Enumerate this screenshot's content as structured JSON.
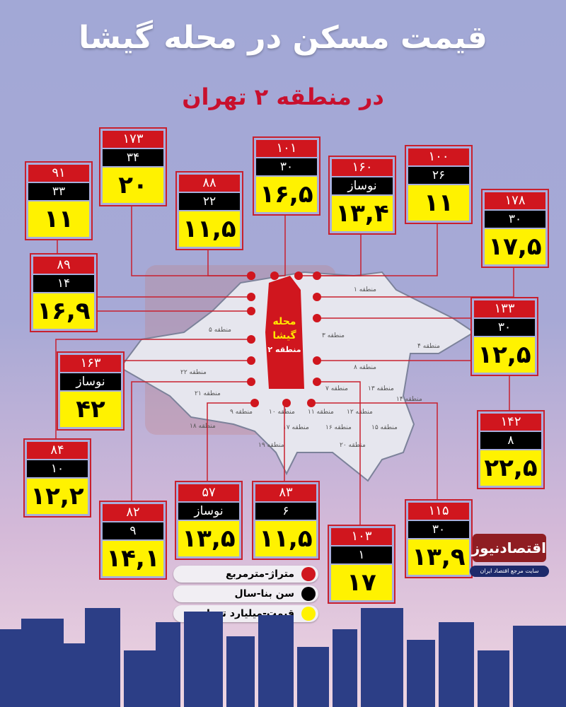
{
  "header": {
    "title": "قیمت مسکن در محله گیشا",
    "subtitle": "در منطقه ۲ تهران"
  },
  "map": {
    "center_label": "محله گیشا",
    "center_sub": "منطقه ۲",
    "districts": [
      "منطقه ۱",
      "منطقه ۳",
      "منطقه ۴",
      "منطقه ۵",
      "منطقه ۲۲",
      "منطقه ۲۱",
      "منطقه ۱۸",
      "منطقه ۹",
      "منطقه ۱۰",
      "منطقه ۱۱",
      "منطقه ۱۲",
      "منطقه ۱۳",
      "منطقه ۱۴",
      "منطقه ۱۵",
      "منطقه ۱۶",
      "منطقه ۱۷",
      "منطقه ۱۹",
      "منطقه ۲۰",
      "منطقه ۷",
      "منطقه ۸"
    ]
  },
  "listings": [
    {
      "area": "۹۱",
      "age": "۳۳",
      "price": "۱۱"
    },
    {
      "area": "۱۷۳",
      "age": "۳۴",
      "price": "۲۰"
    },
    {
      "area": "۸۸",
      "age": "۲۲",
      "price": "۱۱,۵"
    },
    {
      "area": "۱۰۱",
      "age": "۳۰",
      "price": "۱۶,۵"
    },
    {
      "area": "۱۶۰",
      "age": "نوساز",
      "price": "۱۳,۴"
    },
    {
      "area": "۱۰۰",
      "age": "۲۶",
      "price": "۱۱"
    },
    {
      "area": "۱۷۸",
      "age": "۳۰",
      "price": "۱۷,۵"
    },
    {
      "area": "۸۹",
      "age": "۱۴",
      "price": "۱۶,۹"
    },
    {
      "area": "۱۳۳",
      "age": "۳۰",
      "price": "۱۲,۵"
    },
    {
      "area": "۱۶۳",
      "age": "نوساز",
      "price": "۴۲"
    },
    {
      "area": "۱۴۲",
      "age": "۸",
      "price": "۲۲,۵"
    },
    {
      "area": "۸۴",
      "age": "۱۰",
      "price": "۱۲,۲"
    },
    {
      "area": "۸۲",
      "age": "۹",
      "price": "۱۴,۱"
    },
    {
      "area": "۵۷",
      "age": "نوساز",
      "price": "۱۳,۵"
    },
    {
      "area": "۸۳",
      "age": "۶",
      "price": "۱۱,۵"
    },
    {
      "area": "۱۰۳",
      "age": "۱",
      "price": "۱۷"
    },
    {
      "area": "۱۱۵",
      "age": "۳۰",
      "price": "۱۳,۹"
    }
  ],
  "legend": [
    {
      "label": "متراژ-مترمربع",
      "color": "#d0161e"
    },
    {
      "label": "سن بنا-سال",
      "color": "#000000"
    },
    {
      "label": "قیمت-میلیارد تومان",
      "color": "#fff200"
    }
  ],
  "brand": {
    "logo": "اقتصادنیوز",
    "tagline": "سایت مرجع اقتصاد ایران"
  },
  "colors": {
    "area": "#d0161e",
    "age": "#000000",
    "price": "#fff200",
    "accent": "#c8102e"
  }
}
